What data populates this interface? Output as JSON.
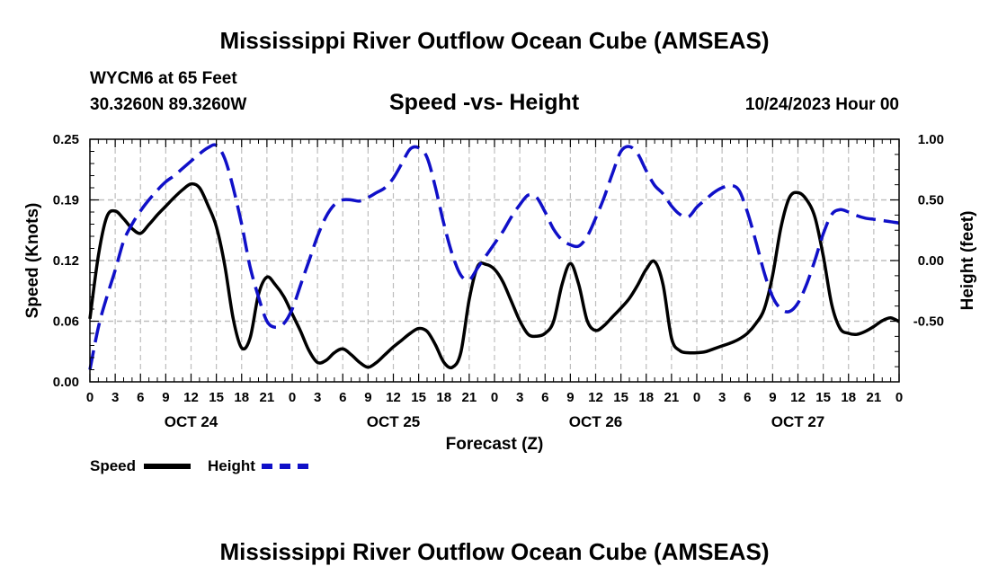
{
  "header": {
    "title": "Mississippi River Outflow Ocean Cube (AMSEAS)",
    "station": "WYCM6 at 65 Feet",
    "location": "30.3260N  89.3260W",
    "subtitle": "Speed -vs- Height",
    "datetime": "10/24/2023 Hour 00",
    "footer_title": "Mississippi River Outflow Ocean Cube (AMSEAS)"
  },
  "legend": {
    "speed": "Speed",
    "height": "Height"
  },
  "chart_data": {
    "type": "line",
    "xlabel": "Forecast (Z)",
    "ylabel": "Speed (Knots)",
    "y2label": "Height (feet)",
    "xlim": [
      0,
      96
    ],
    "ylim": [
      0,
      0.25
    ],
    "y2lim": [
      -1.0,
      1.0
    ],
    "x_tick_labels": [
      "0",
      "3",
      "6",
      "9",
      "12",
      "15",
      "18",
      "21",
      "0",
      "3",
      "6",
      "9",
      "12",
      "15",
      "18",
      "21",
      "0",
      "3",
      "6",
      "9",
      "12",
      "15",
      "18",
      "21",
      "0",
      "3",
      "6",
      "9",
      "12",
      "15",
      "18",
      "21",
      "0"
    ],
    "y_tick_labels": [
      "0.00",
      "0.06",
      "0.12",
      "0.19",
      "0.25"
    ],
    "y_tick_values": [
      0.0,
      0.0625,
      0.125,
      0.1875,
      0.25
    ],
    "y2_tick_labels": [
      "-0.50",
      "0.00",
      "0.50",
      "1.00"
    ],
    "y2_tick_values": [
      -0.5,
      0.0,
      0.5,
      1.0
    ],
    "day_labels": [
      {
        "label": "OCT 24",
        "hour": 12
      },
      {
        "label": "OCT 25",
        "hour": 36
      },
      {
        "label": "OCT 26",
        "hour": 60
      },
      {
        "label": "OCT 27",
        "hour": 84
      }
    ],
    "series": [
      {
        "name": "Speed",
        "axis": "left",
        "color": "#000000",
        "dashed": false,
        "x": [
          0,
          1,
          2,
          3,
          4,
          5,
          6,
          7,
          8,
          9,
          10,
          11,
          12,
          13,
          14,
          15,
          16,
          17,
          18,
          19,
          20,
          21,
          22,
          23,
          24,
          25,
          26,
          27,
          28,
          29,
          30,
          31,
          32,
          33,
          34,
          35,
          36,
          37,
          38,
          39,
          40,
          41,
          42,
          43,
          44,
          45,
          46,
          47,
          48,
          49,
          50,
          51,
          52,
          53,
          54,
          55,
          56,
          57,
          58,
          59,
          60,
          61,
          62,
          63,
          64,
          65,
          66,
          67,
          68,
          69,
          70,
          71,
          72,
          73,
          74,
          75,
          76,
          77,
          78,
          79,
          80,
          81,
          82,
          83,
          84,
          85,
          86,
          87,
          88,
          89,
          90,
          91,
          92,
          93,
          94,
          95,
          96
        ],
        "values": [
          0.065,
          0.13,
          0.17,
          0.176,
          0.168,
          0.158,
          0.153,
          0.162,
          0.172,
          0.181,
          0.19,
          0.198,
          0.204,
          0.2,
          0.182,
          0.16,
          0.12,
          0.065,
          0.035,
          0.045,
          0.09,
          0.108,
          0.1,
          0.088,
          0.07,
          0.052,
          0.032,
          0.02,
          0.022,
          0.03,
          0.034,
          0.028,
          0.02,
          0.015,
          0.02,
          0.028,
          0.036,
          0.043,
          0.05,
          0.055,
          0.052,
          0.038,
          0.02,
          0.015,
          0.03,
          0.085,
          0.119,
          0.121,
          0.116,
          0.103,
          0.083,
          0.063,
          0.049,
          0.047,
          0.05,
          0.062,
          0.1,
          0.122,
          0.1,
          0.063,
          0.053,
          0.058,
          0.067,
          0.076,
          0.086,
          0.1,
          0.116,
          0.124,
          0.1,
          0.045,
          0.032,
          0.03,
          0.03,
          0.031,
          0.034,
          0.037,
          0.04,
          0.044,
          0.05,
          0.06,
          0.075,
          0.11,
          0.16,
          0.19,
          0.195,
          0.188,
          0.17,
          0.13,
          0.08,
          0.055,
          0.05,
          0.049,
          0.052,
          0.057,
          0.063,
          0.066,
          0.062
        ]
      },
      {
        "name": "Height",
        "axis": "right",
        "color": "#1010c8",
        "dashed": true,
        "x": [
          0,
          1,
          2,
          3,
          4,
          5,
          6,
          7,
          8,
          9,
          10,
          11,
          12,
          13,
          14,
          15,
          16,
          17,
          18,
          19,
          20,
          21,
          22,
          23,
          24,
          25,
          26,
          27,
          28,
          29,
          30,
          31,
          32,
          33,
          34,
          35,
          36,
          37,
          38,
          39,
          40,
          41,
          42,
          43,
          44,
          45,
          46,
          47,
          48,
          49,
          50,
          51,
          52,
          53,
          54,
          55,
          56,
          57,
          58,
          59,
          60,
          61,
          62,
          63,
          64,
          65,
          66,
          67,
          68,
          69,
          70,
          71,
          72,
          73,
          74,
          75,
          76,
          77,
          78,
          79,
          80,
          81,
          82,
          83,
          84,
          85,
          86,
          87,
          88,
          89,
          90,
          91,
          92,
          93,
          94,
          95,
          96
        ],
        "values": [
          -0.9,
          -0.55,
          -0.3,
          -0.08,
          0.16,
          0.3,
          0.41,
          0.5,
          0.58,
          0.65,
          0.7,
          0.76,
          0.82,
          0.88,
          0.93,
          0.95,
          0.84,
          0.6,
          0.3,
          -0.05,
          -0.3,
          -0.5,
          -0.55,
          -0.52,
          -0.4,
          -0.2,
          0.0,
          0.2,
          0.36,
          0.46,
          0.5,
          0.5,
          0.49,
          0.52,
          0.56,
          0.6,
          0.68,
          0.8,
          0.92,
          0.93,
          0.85,
          0.6,
          0.3,
          0.05,
          -0.12,
          -0.16,
          -0.06,
          0.04,
          0.14,
          0.24,
          0.36,
          0.46,
          0.54,
          0.52,
          0.4,
          0.26,
          0.17,
          0.13,
          0.12,
          0.2,
          0.35,
          0.52,
          0.72,
          0.9,
          0.94,
          0.88,
          0.74,
          0.62,
          0.55,
          0.45,
          0.38,
          0.36,
          0.44,
          0.5,
          0.56,
          0.6,
          0.62,
          0.58,
          0.4,
          0.16,
          -0.1,
          -0.3,
          -0.4,
          -0.42,
          -0.35,
          -0.2,
          0.0,
          0.22,
          0.38,
          0.42,
          0.4,
          0.37,
          0.35,
          0.34,
          0.33,
          0.32,
          0.31
        ]
      }
    ]
  }
}
